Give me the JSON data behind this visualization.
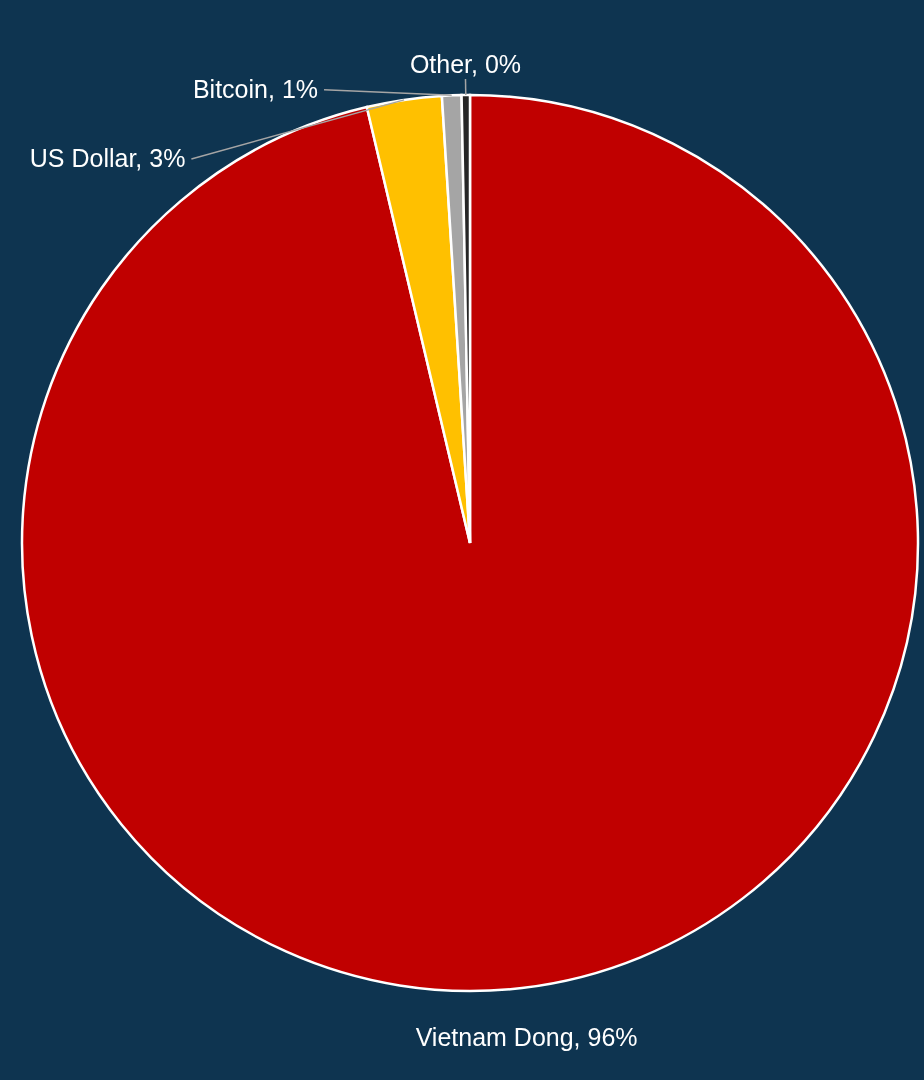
{
  "chart_data": {
    "type": "pie",
    "categories": [
      "Vietnam Dong",
      "US Dollar",
      "Bitcoin",
      "Other"
    ],
    "values": [
      96.3,
      2.7,
      0.7,
      0.3
    ],
    "value_labels": [
      "96%",
      "3%",
      "1%",
      "0%"
    ],
    "colors": [
      "#c00000",
      "#ffc000",
      "#a5a5a5",
      "#262626"
    ]
  }
}
